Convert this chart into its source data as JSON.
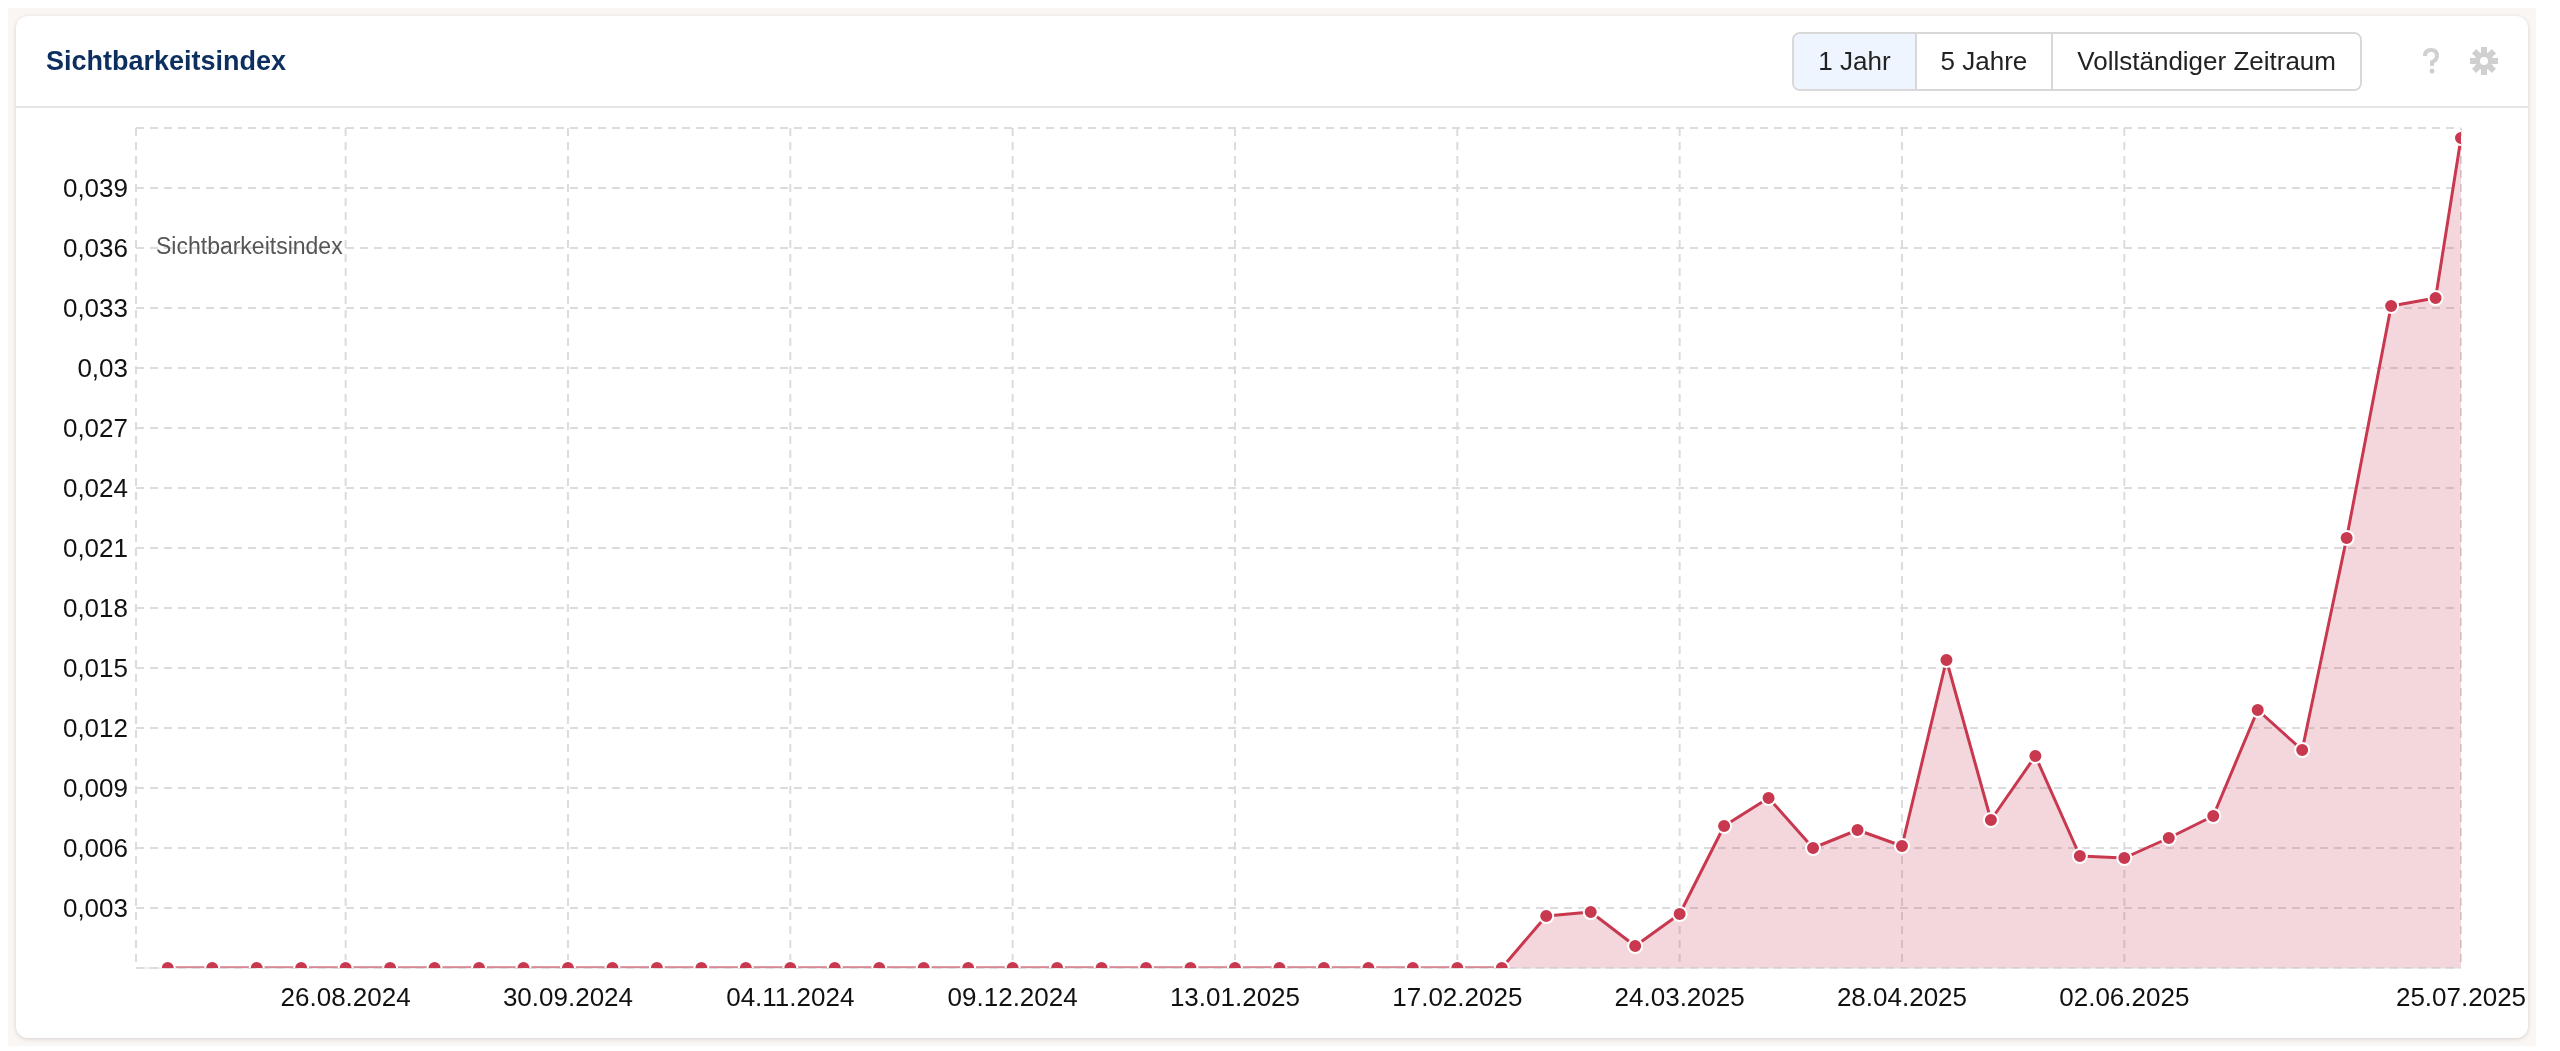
{
  "chart_data": {
    "type": "area",
    "title": "Sichtbarkeitsindex",
    "legend_title": "Sichtbarkeitsindex",
    "grid": true,
    "marker": "circle",
    "line_style": "solid",
    "annotations": [
      "1 Jahr",
      "5 Jahre",
      "Vollständiger Zeitraum"
    ],
    "x": [
      "2024-07-29",
      "2024-08-05",
      "2024-08-12",
      "2024-08-19",
      "2024-08-26",
      "2024-09-02",
      "2024-09-09",
      "2024-09-16",
      "2024-09-23",
      "2024-09-30",
      "2024-10-07",
      "2024-10-14",
      "2024-10-21",
      "2024-10-28",
      "2024-11-04",
      "2024-11-11",
      "2024-11-18",
      "2024-11-25",
      "2024-12-02",
      "2024-12-09",
      "2024-12-16",
      "2024-12-23",
      "2024-12-30",
      "2025-01-06",
      "2025-01-13",
      "2025-01-20",
      "2025-01-27",
      "2025-02-03",
      "2025-02-10",
      "2025-02-17",
      "2025-02-24",
      "2025-03-03",
      "2025-03-10",
      "2025-03-17",
      "2025-03-24",
      "2025-03-31",
      "2025-04-07",
      "2025-04-14",
      "2025-04-21",
      "2025-04-28",
      "2025-05-05",
      "2025-05-12",
      "2025-05-19",
      "2025-05-26",
      "2025-06-02",
      "2025-06-09",
      "2025-06-16",
      "2025-06-23",
      "2025-06-30",
      "2025-07-07",
      "2025-07-14",
      "2025-07-21",
      "2025-07-25"
    ],
    "series": [
      {
        "color": "#c8384f",
        "values": [
          0,
          0,
          0,
          0,
          0,
          0,
          0,
          0,
          0,
          0,
          0,
          0,
          0,
          0,
          0,
          0,
          0,
          0,
          0,
          0,
          0,
          0,
          0,
          0,
          0,
          0,
          0,
          0,
          0,
          0,
          0,
          0.0026,
          0.0028,
          0.0011,
          0.0027,
          0.0071,
          0.0085,
          0.006,
          0.0069,
          0.0061,
          0.0154,
          0.0074,
          0.0106,
          0.0056,
          0.0055,
          0.0065,
          0.0076,
          0.0129,
          0.0109,
          0.0215,
          0.0331,
          0.0335,
          0.0415
        ]
      }
    ],
    "xlim": [
      "2024-07-24",
      "2025-07-25"
    ],
    "xticks": [
      {
        "value": "2024-08-26",
        "label": "26.08.2024"
      },
      {
        "value": "2024-09-30",
        "label": "30.09.2024"
      },
      {
        "value": "2024-11-04",
        "label": "04.11.2024"
      },
      {
        "value": "2024-12-09",
        "label": "09.12.2024"
      },
      {
        "value": "2025-01-13",
        "label": "13.01.2025"
      },
      {
        "value": "2025-02-17",
        "label": "17.02.2025"
      },
      {
        "value": "2025-03-24",
        "label": "24.03.2025"
      },
      {
        "value": "2025-04-28",
        "label": "28.04.2025"
      },
      {
        "value": "2025-06-02",
        "label": "02.06.2025"
      },
      {
        "value": "2025-07-25",
        "label": "25.07.2025"
      }
    ],
    "ylim": [
      0,
      0.042
    ],
    "yticks": [
      {
        "value": 0,
        "label": null
      },
      {
        "value": 0.003,
        "label": "0,003"
      },
      {
        "value": 0.006,
        "label": "0,006"
      },
      {
        "value": 0.009,
        "label": "0,009"
      },
      {
        "value": 0.012,
        "label": "0,012"
      },
      {
        "value": 0.015,
        "label": "0,015"
      },
      {
        "value": 0.018,
        "label": "0,018"
      },
      {
        "value": 0.021,
        "label": "0,021"
      },
      {
        "value": 0.024,
        "label": "0,024"
      },
      {
        "value": 0.027,
        "label": "0,027"
      },
      {
        "value": 0.03,
        "label": "0,03"
      },
      {
        "value": 0.033,
        "label": "0,033"
      },
      {
        "value": 0.036,
        "label": "0,036"
      },
      {
        "value": 0.039,
        "label": "0,039"
      }
    ]
  }
}
